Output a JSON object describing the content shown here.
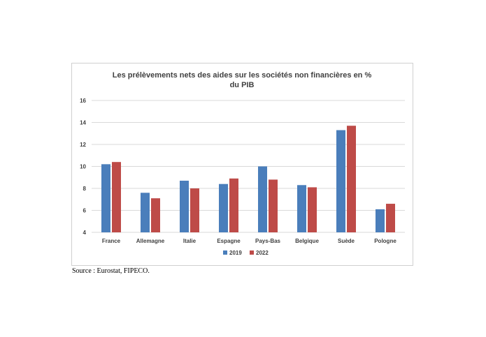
{
  "chart_data": {
    "type": "bar",
    "title": "Les prélèvements nets des aides sur les sociétés non financières en % du PIB",
    "title_lines": [
      "Les prélèvements nets des aides sur les sociétés non financières en %",
      "du PIB"
    ],
    "categories": [
      "France",
      "Allemagne",
      "Italie",
      "Espagne",
      "Pays-Bas",
      "Belgique",
      "Suède",
      "Pologne"
    ],
    "series": [
      {
        "name": "2019",
        "color": "#4a7ebb",
        "values": [
          10.2,
          7.6,
          8.7,
          8.4,
          10.0,
          8.3,
          13.3,
          6.1
        ]
      },
      {
        "name": "2022",
        "color": "#be4b48",
        "values": [
          10.4,
          7.1,
          8.0,
          8.9,
          8.8,
          8.1,
          13.7,
          6.6
        ]
      }
    ],
    "ylim": [
      4,
      16
    ],
    "yticks": [
      "4",
      "6",
      "8",
      "10",
      "12",
      "14",
      "16"
    ],
    "grid": true,
    "legend": "bottom"
  },
  "source": "Source : Eurostat, FIPECO."
}
